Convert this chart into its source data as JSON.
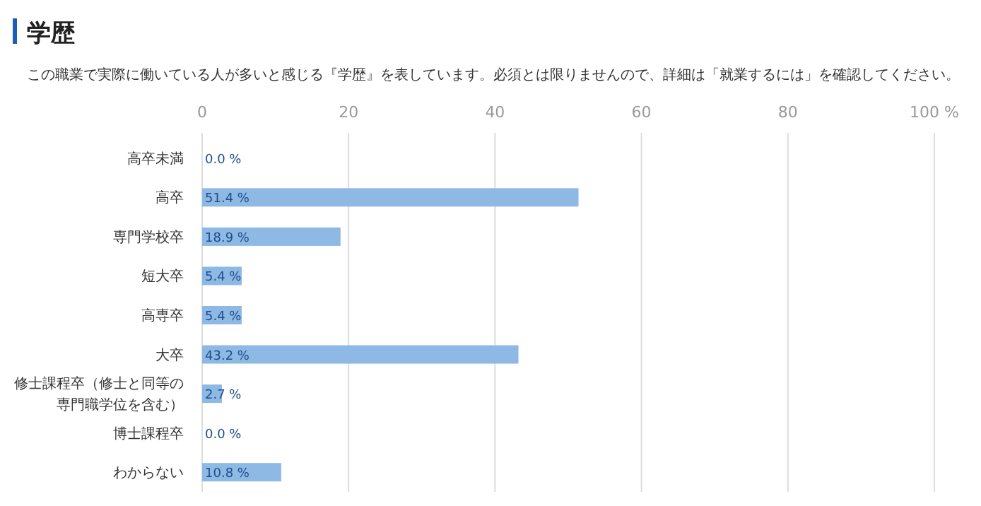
{
  "chart_data": {
    "type": "bar",
    "orientation": "horizontal",
    "title": "学歴",
    "subtitle": "この職業で実際に働いている人が多いと感じる『学歴』を表しています。必須とは限りませんので、詳細は「就業するには」を確認してください。",
    "categories": [
      "高卒未満",
      "高卒",
      "専門学校卒",
      "短大卒",
      "高専卒",
      "大卒",
      "修士課程卒（修士と同等の専門職学位を含む）",
      "博士課程卒",
      "わからない"
    ],
    "values": [
      0,
      51.4,
      18.9,
      5.4,
      5.4,
      43.2,
      2.7,
      0,
      10.8
    ],
    "value_labels": [
      "0.0 %",
      "51.4 %",
      "18.9 %",
      "5.4 %",
      "5.4 %",
      "43.2 %",
      "2.7 %",
      "0.0 %",
      "10.8 %"
    ],
    "color": "#8db9e4",
    "xlim": [
      0,
      100
    ],
    "xticks": [
      0,
      20,
      40,
      60,
      80,
      {
        "value": 100,
        "label": "100 %"
      }
    ],
    "grid": "x"
  }
}
